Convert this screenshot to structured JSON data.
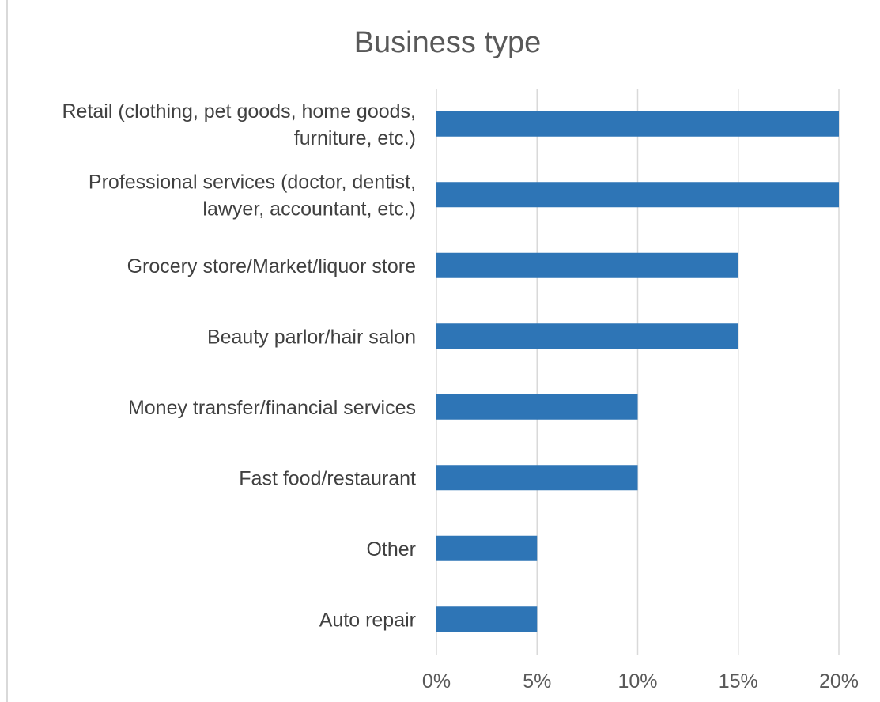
{
  "chart_data": {
    "type": "bar",
    "orientation": "horizontal",
    "title": "Business type",
    "xlabel": "",
    "ylabel": "",
    "categories": [
      [
        "Retail (clothing, pet goods, home goods,",
        "furniture, etc.)"
      ],
      [
        "Professional services (doctor, dentist,",
        "lawyer, accountant, etc.)"
      ],
      [
        "Grocery store/Market/liquor store"
      ],
      [
        "Beauty parlor/hair salon"
      ],
      [
        "Money transfer/financial services"
      ],
      [
        "Fast food/restaurant"
      ],
      [
        "Other"
      ],
      [
        "Auto repair"
      ]
    ],
    "values": [
      20,
      20,
      15,
      15,
      10,
      10,
      5,
      5
    ],
    "xlim": [
      0,
      20
    ],
    "ticks": [
      0,
      5,
      10,
      15,
      20
    ],
    "tick_labels": [
      "0%",
      "5%",
      "10%",
      "15%",
      "20%"
    ],
    "grid": true,
    "legend": "none",
    "colors": {
      "bar": "#2E75B6",
      "grid": "#d9d9d9",
      "frame": "#d9d9d9",
      "title": "#595959",
      "label": "#404040"
    }
  }
}
